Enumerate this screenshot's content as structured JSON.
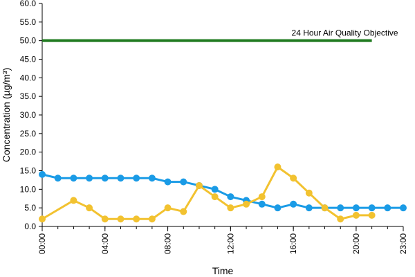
{
  "chart_data": {
    "type": "line",
    "xlabel": "Time",
    "ylabel": "Concentration (µg/m³)",
    "ylim": [
      0,
      60
    ],
    "yticks": [
      "0.0",
      "5.0",
      "10.0",
      "15.0",
      "20.0",
      "25.0",
      "30.0",
      "35.0",
      "40.0",
      "45.0",
      "50.0",
      "55.0",
      "60.0"
    ],
    "xlim": [
      0,
      23
    ],
    "xticks": [
      {
        "hour": 0,
        "label": "00:00"
      },
      {
        "hour": 4,
        "label": "04:00"
      },
      {
        "hour": 8,
        "label": "08:00"
      },
      {
        "hour": 12,
        "label": "12:00"
      },
      {
        "hour": 16,
        "label": "16:00"
      },
      {
        "hour": 20,
        "label": "20:00"
      },
      {
        "hour": 23,
        "label": "23:00"
      }
    ],
    "grid": false,
    "legend": "none",
    "objective": {
      "label": "24 Hour Air Quality Objective",
      "value": 50,
      "x_from": 0,
      "x_to": 21,
      "color": "#1f7a1f"
    },
    "series": [
      {
        "color": "#1a9be6",
        "points": [
          [
            0,
            14
          ],
          [
            1,
            13
          ],
          [
            2,
            13
          ],
          [
            3,
            13
          ],
          [
            4,
            13
          ],
          [
            5,
            13
          ],
          [
            6,
            13
          ],
          [
            7,
            13
          ],
          [
            8,
            12
          ],
          [
            9,
            12
          ],
          [
            10,
            11
          ],
          [
            11,
            10
          ],
          [
            12,
            8
          ],
          [
            13,
            7
          ],
          [
            14,
            6
          ],
          [
            15,
            5
          ],
          [
            16,
            6
          ],
          [
            17,
            5
          ],
          [
            18,
            5
          ],
          [
            19,
            5
          ],
          [
            20,
            5
          ],
          [
            21,
            5
          ],
          [
            22,
            5
          ],
          [
            23,
            5
          ]
        ]
      },
      {
        "color": "#f2c230",
        "points": [
          [
            0,
            2
          ],
          [
            2,
            7
          ],
          [
            3,
            5
          ],
          [
            4,
            2
          ],
          [
            5,
            2
          ],
          [
            6,
            2
          ],
          [
            7,
            2
          ],
          [
            8,
            5
          ],
          [
            9,
            4
          ],
          [
            10,
            11
          ],
          [
            11,
            8
          ],
          [
            12,
            5
          ],
          [
            13,
            6
          ],
          [
            14,
            8
          ],
          [
            15,
            16
          ],
          [
            16,
            13
          ],
          [
            17,
            9
          ],
          [
            18,
            5
          ],
          [
            19,
            2
          ],
          [
            20,
            3
          ],
          [
            21,
            3
          ]
        ]
      }
    ]
  }
}
